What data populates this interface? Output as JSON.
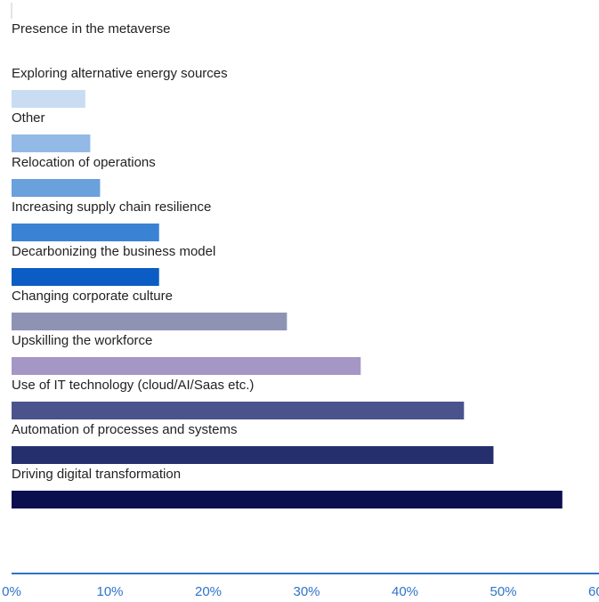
{
  "chart_data": {
    "type": "bar",
    "orientation": "horizontal",
    "categories": [
      "Presence in the metaverse",
      "Exploring alternative energy sources",
      "Other",
      "Relocation of operations",
      "Increasing supply chain resilience",
      "Decarbonizing the business model",
      "Changing corporate culture",
      "Upskilling the workforce",
      "Use of IT technology (cloud/AI/Saas etc.)",
      "Automation of processes and systems",
      "Driving digital transformation"
    ],
    "values": [
      0,
      7.5,
      8,
      9,
      15,
      15,
      28,
      35.5,
      46,
      49,
      56
    ],
    "bar_colors": [
      "#c9dcf2",
      "#c9dcf2",
      "#93b9e6",
      "#6aa0dc",
      "#3a82d4",
      "#0b5cc4",
      "#8f93b3",
      "#a597c5",
      "#4b538c",
      "#262f6e",
      "#0b0f4f"
    ],
    "x_ticks": [
      "0%",
      "10%",
      "20%",
      "30%",
      "40%",
      "50%",
      "60%"
    ],
    "xlim": [
      0,
      60
    ],
    "axis_color": "#2e73c9",
    "tick_label_color": "#2e73c9",
    "grid": false,
    "legend": "none"
  }
}
